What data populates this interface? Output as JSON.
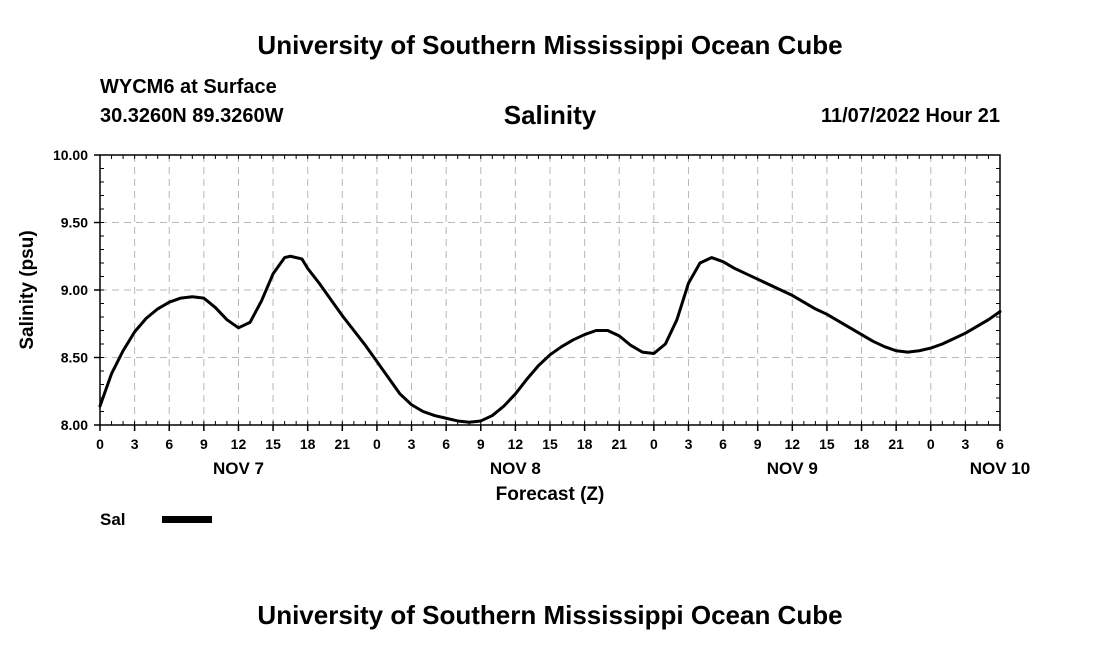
{
  "header": {
    "title": "University of Southern Mississippi Ocean Cube",
    "station": "WYCM6 at Surface",
    "coords": "30.3260N  89.3260W",
    "datetime": "11/07/2022 Hour 21"
  },
  "footer": {
    "title": "University of Southern Mississippi Ocean Cube"
  },
  "legend": {
    "label": "Sal",
    "color": "#000000"
  },
  "chart_data": {
    "type": "line",
    "title": "Salinity",
    "xlabel": "Forecast (Z)",
    "ylabel": "Salinity (psu)",
    "ylim": [
      8.0,
      10.0
    ],
    "yticks": [
      "8.00",
      "8.50",
      "9.00",
      "9.50",
      "10.00"
    ],
    "xlim_hours": [
      0,
      78
    ],
    "xtick_labels": [
      "0",
      "3",
      "6",
      "9",
      "12",
      "15",
      "18",
      "21",
      "0",
      "3",
      "6",
      "9",
      "12",
      "15",
      "18",
      "21",
      "0",
      "3",
      "6",
      "9",
      "12",
      "15",
      "18",
      "21",
      "0",
      "3",
      "6"
    ],
    "day_labels": [
      {
        "hour": 12,
        "label": "NOV 7"
      },
      {
        "hour": 36,
        "label": "NOV 8"
      },
      {
        "hour": 60,
        "label": "NOV 9"
      },
      {
        "hour": 78,
        "label": "NOV 10"
      }
    ],
    "grid": true,
    "series": [
      {
        "name": "Sal",
        "color": "#000000",
        "x": [
          0,
          1,
          2,
          3,
          4,
          5,
          6,
          7,
          8,
          9,
          10,
          11,
          12,
          13,
          14,
          15,
          16,
          16.5,
          17.5,
          18,
          19,
          20,
          21,
          22,
          23,
          24,
          25,
          26,
          27,
          28,
          29,
          30,
          31,
          32,
          33,
          34,
          35,
          36,
          37,
          38,
          39,
          40,
          41,
          42,
          43,
          44,
          45,
          46,
          47,
          48,
          49,
          50,
          51,
          52,
          53,
          54,
          55,
          56,
          57,
          58,
          59,
          60,
          61,
          62,
          63,
          64,
          65,
          66,
          67,
          68,
          69,
          70,
          71,
          72,
          73,
          74,
          75,
          76,
          77,
          78
        ],
        "values": [
          8.14,
          8.38,
          8.55,
          8.69,
          8.79,
          8.86,
          8.91,
          8.94,
          8.95,
          8.94,
          8.87,
          8.78,
          8.72,
          8.76,
          8.92,
          9.12,
          9.24,
          9.25,
          9.23,
          9.16,
          9.05,
          8.93,
          8.81,
          8.7,
          8.59,
          8.47,
          8.35,
          8.23,
          8.15,
          8.1,
          8.07,
          8.05,
          8.03,
          8.02,
          8.03,
          8.07,
          8.14,
          8.23,
          8.34,
          8.44,
          8.52,
          8.58,
          8.63,
          8.67,
          8.7,
          8.7,
          8.66,
          8.59,
          8.54,
          8.53,
          8.6,
          8.78,
          9.05,
          9.2,
          9.24,
          9.21,
          9.16,
          9.12,
          9.08,
          9.04,
          9.0,
          8.96,
          8.91,
          8.86,
          8.82,
          8.77,
          8.72,
          8.67,
          8.62,
          8.58,
          8.55,
          8.54,
          8.55,
          8.57,
          8.6,
          8.64,
          8.68,
          8.73,
          8.78,
          8.84
        ]
      }
    ]
  }
}
